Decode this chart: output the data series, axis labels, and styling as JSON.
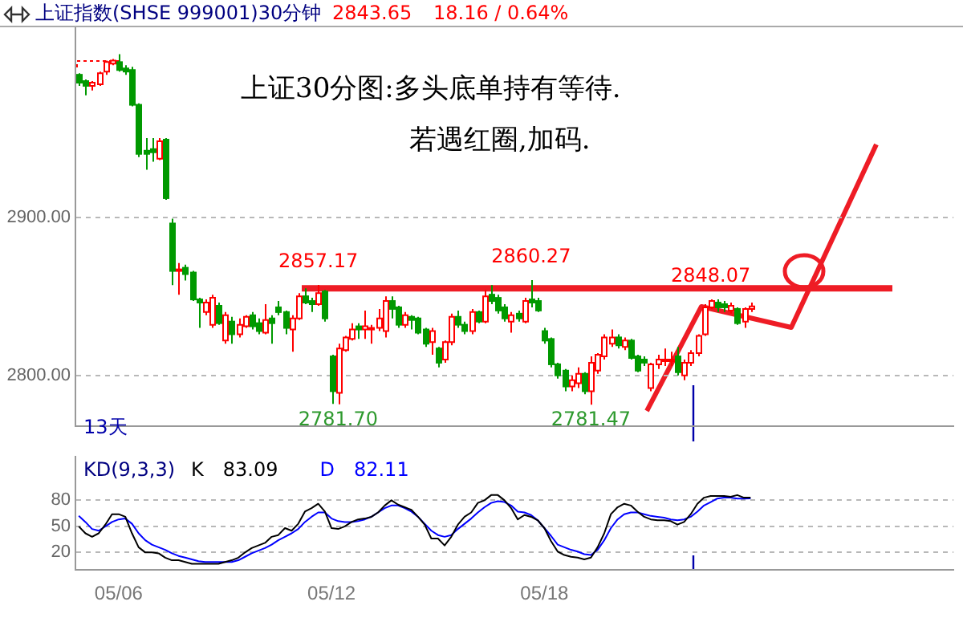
{
  "chart_data": [
    {
      "type": "candlestick",
      "title": "上证指数(SHSE 999001)30分钟",
      "categories": [
        null,
        null,
        null,
        null,
        null,
        null,
        null,
        null,
        null,
        null,
        null,
        null,
        null,
        null,
        null,
        null,
        null,
        null,
        null,
        null,
        null,
        null,
        null,
        null,
        null,
        null,
        null,
        null,
        null,
        null,
        null,
        null,
        null,
        null,
        null,
        null,
        null,
        null,
        null,
        null,
        null,
        null,
        null,
        null,
        null,
        null,
        null,
        null,
        null,
        null,
        null,
        null,
        null,
        null,
        null,
        null,
        null,
        null,
        null,
        null,
        null,
        null,
        null,
        null,
        null,
        null,
        null,
        null,
        null,
        null,
        null,
        null,
        null,
        null,
        null,
        null,
        null,
        null,
        null,
        null,
        null,
        null,
        null,
        null,
        null,
        null,
        null,
        null,
        null,
        null,
        null,
        null,
        null,
        null,
        null,
        null,
        null,
        null,
        null,
        null,
        null,
        null,
        null,
        null,
        null,
        null,
        null,
        null,
        null,
        null,
        null,
        null,
        null,
        null,
        null,
        null,
        null,
        null,
        null,
        null,
        null,
        null,
        null,
        null,
        null,
        null,
        null,
        null,
        null,
        null,
        null,
        null
      ],
      "ohlc": [
        [
          2990,
          2991,
          2983,
          2985
        ],
        [
          2986,
          2987,
          2977,
          2983
        ],
        [
          2983,
          2986,
          2980,
          2985
        ],
        [
          2984,
          2992,
          2983,
          2991
        ],
        [
          2992,
          2999,
          2990,
          2998
        ],
        [
          2997,
          3000,
          2996,
          2999
        ],
        [
          2998,
          3003,
          2992,
          2993
        ],
        [
          2994,
          2996,
          2990,
          2992
        ],
        [
          2993,
          2995,
          2970,
          2971
        ],
        [
          2971,
          2972,
          2938,
          2940
        ],
        [
          2942,
          2950,
          2930,
          2940
        ],
        [
          2943,
          2950,
          2935,
          2941
        ],
        [
          2937,
          2950,
          2936,
          2948
        ],
        [
          2949,
          2950,
          2911,
          2912
        ],
        [
          2896,
          2899,
          2857,
          2866
        ],
        [
          2866,
          2871,
          2851,
          2867
        ],
        [
          2868,
          2870,
          2860,
          2864
        ],
        [
          2865,
          2866,
          2847,
          2848
        ],
        [
          2848,
          2849,
          2830,
          2846
        ],
        [
          2840,
          2848,
          2838,
          2846
        ],
        [
          2832,
          2851,
          2830,
          2849
        ],
        [
          2844,
          2846,
          2832,
          2833
        ],
        [
          2822,
          2840,
          2820,
          2838
        ],
        [
          2834,
          2837,
          2820,
          2826
        ],
        [
          2826,
          2836,
          2824,
          2832
        ],
        [
          2831,
          2838,
          2830,
          2837
        ],
        [
          2838,
          2840,
          2829,
          2831
        ],
        [
          2833,
          2836,
          2826,
          2828
        ],
        [
          2827,
          2845,
          2826,
          2835
        ],
        [
          2836,
          2838,
          2820,
          2833
        ],
        [
          2843,
          2847,
          2838,
          2840
        ],
        [
          2840,
          2841,
          2826,
          2830
        ],
        [
          2829,
          2838,
          2815,
          2836
        ],
        [
          2836,
          2852,
          2835,
          2850
        ],
        [
          2850,
          2855,
          2845,
          2846
        ],
        [
          2847,
          2849,
          2840,
          2845
        ],
        [
          2845,
          2857.17,
          2844,
          2852
        ],
        [
          2853,
          2854,
          2834,
          2836
        ],
        [
          2812,
          2813,
          2782,
          2790
        ],
        [
          2789,
          2820,
          2781.7,
          2817
        ],
        [
          2816,
          2825,
          2815,
          2824
        ],
        [
          2823,
          2833,
          2822,
          2829
        ],
        [
          2831,
          2833,
          2823,
          2829
        ],
        [
          2829,
          2841,
          2823,
          2831
        ],
        [
          2829,
          2832,
          2820,
          2830
        ],
        [
          2830,
          2842,
          2828,
          2836
        ],
        [
          2828,
          2850,
          2824,
          2847
        ],
        [
          2847,
          2850,
          2836,
          2842
        ],
        [
          2843,
          2844,
          2830,
          2832
        ],
        [
          2832,
          2840,
          2830,
          2838
        ],
        [
          2837,
          2838,
          2829,
          2835
        ],
        [
          2836,
          2837,
          2826,
          2827
        ],
        [
          2829,
          2830,
          2818,
          2820
        ],
        [
          2821,
          2830,
          2813,
          2828
        ],
        [
          2817,
          2818,
          2805,
          2808
        ],
        [
          2810,
          2822,
          2808,
          2821
        ],
        [
          2821,
          2839,
          2819,
          2837
        ],
        [
          2837,
          2841,
          2830,
          2832
        ],
        [
          2832,
          2834,
          2826,
          2828
        ],
        [
          2828,
          2842,
          2826,
          2840
        ],
        [
          2840,
          2841,
          2833,
          2834
        ],
        [
          2834,
          2854,
          2833,
          2850
        ],
        [
          2851,
          2857,
          2845,
          2847
        ],
        [
          2849,
          2851,
          2839,
          2841
        ],
        [
          2843,
          2845,
          2834,
          2836
        ],
        [
          2834,
          2840,
          2827,
          2838
        ],
        [
          2839,
          2841,
          2834,
          2836
        ],
        [
          2834,
          2849,
          2833,
          2847
        ],
        [
          2848,
          2860.27,
          2843,
          2846
        ],
        [
          2847,
          2849,
          2840,
          2841
        ],
        [
          2828,
          2830,
          2820,
          2822
        ],
        [
          2823,
          2824,
          2805,
          2807
        ],
        [
          2807,
          2808,
          2798,
          2800
        ],
        [
          2803,
          2804,
          2790,
          2793
        ],
        [
          2793,
          2800,
          2790,
          2797
        ],
        [
          2795,
          2805,
          2792,
          2801
        ],
        [
          2801,
          2802,
          2788,
          2790
        ],
        [
          2790,
          2812,
          2781.47,
          2808
        ],
        [
          2803,
          2814,
          2801,
          2813
        ],
        [
          2812,
          2826,
          2810,
          2824
        ],
        [
          2820,
          2829,
          2818,
          2824
        ],
        [
          2824,
          2826,
          2817,
          2819
        ],
        [
          2818,
          2824,
          2816,
          2822
        ],
        [
          2822,
          2823,
          2810,
          2811
        ],
        [
          2812,
          2813,
          2802,
          2803
        ],
        [
          2810,
          2812,
          2806,
          2808
        ],
        [
          2792,
          2808,
          2790,
          2807
        ],
        [
          2807,
          2813,
          2804,
          2810
        ],
        [
          2809,
          2817,
          2806,
          2810
        ],
        [
          2809,
          2815,
          2806,
          2810
        ],
        [
          2812,
          2818,
          2800,
          2802
        ],
        [
          2800,
          2810,
          2797,
          2808
        ],
        [
          2808,
          2816,
          2806,
          2814
        ],
        [
          2814,
          2826,
          2812,
          2825
        ],
        [
          2826,
          2845,
          2825,
          2843
        ],
        [
          2843,
          2848.07,
          2842,
          2847
        ],
        [
          2846,
          2848,
          2840,
          2843
        ],
        [
          2845,
          2847,
          2840,
          2843
        ],
        [
          2841,
          2846,
          2839,
          2844
        ],
        [
          2842,
          2843,
          2832,
          2833
        ],
        [
          2834,
          2843,
          2830,
          2842
        ],
        [
          2842,
          2846,
          2840,
          2843.65
        ],
        null,
        null,
        null,
        null,
        null,
        null,
        null,
        null,
        null,
        null,
        null,
        null,
        null,
        null,
        null,
        null,
        null,
        null,
        null,
        null,
        null,
        null,
        null,
        null,
        null,
        null,
        null,
        null,
        null,
        null
      ],
      "ylim": [
        2768,
        3020
      ],
      "yticks": [
        {
          "value": 2800,
          "label": "2800.00"
        },
        {
          "value": 2900,
          "label": "2900.00"
        }
      ],
      "grid": "y",
      "ref_lines": [
        {
          "axis": "y",
          "value": 2855,
          "color": "#ee1c25"
        }
      ],
      "annotations": [
        "2843.65",
        "18.16 / 0.64%",
        "上证30分图:多头底单持有等待.",
        "若遇红圈,加码.",
        "13天",
        {
          "text": "2857.17",
          "y": 2857.17
        },
        {
          "text": "2860.27",
          "y": 2860.27
        },
        {
          "text": "2848.07",
          "y": 2848.07
        },
        {
          "text": "2781.70",
          "y": 2781.7
        },
        {
          "text": "2781.47",
          "y": 2781.47
        }
      ]
    },
    {
      "type": "line",
      "title": "KD(9,3,3)",
      "categories": [
        null,
        null,
        null,
        null,
        null,
        null,
        "05/06",
        null,
        null,
        null,
        null,
        null,
        null,
        null,
        null,
        null,
        null,
        null,
        null,
        null,
        null,
        null,
        null,
        null,
        null,
        null,
        null,
        null,
        null,
        null,
        null,
        null,
        null,
        null,
        null,
        null,
        null,
        null,
        "05/12",
        null,
        null,
        null,
        null,
        null,
        null,
        null,
        null,
        null,
        null,
        null,
        null,
        null,
        null,
        null,
        null,
        null,
        null,
        null,
        null,
        null,
        null,
        null,
        null,
        null,
        null,
        null,
        null,
        null,
        null,
        null,
        "05/18",
        null,
        null,
        null,
        null,
        null,
        null,
        null,
        null,
        null,
        null,
        null,
        null,
        null,
        null,
        null,
        null,
        null,
        null,
        null,
        null,
        null,
        null,
        null,
        null,
        null,
        null,
        null,
        null,
        null,
        null,
        null,
        null,
        null,
        null,
        null,
        null,
        null,
        null,
        null,
        null,
        null,
        null,
        null,
        null,
        null,
        null,
        null,
        null,
        null,
        null,
        null,
        null,
        null,
        null,
        null,
        null,
        null,
        null,
        null,
        null,
        null
      ],
      "series": [
        {
          "name": "K",
          "color": "#000000",
          "values": [
            50,
            42,
            38,
            42,
            52,
            64,
            64,
            61,
            42,
            26,
            20,
            20,
            19,
            14,
            11,
            11,
            9,
            7,
            7,
            7,
            7,
            7,
            9,
            11,
            14,
            20,
            25,
            28,
            31,
            38,
            40,
            48,
            45,
            53,
            67,
            71,
            76,
            67,
            48,
            47,
            50,
            55,
            58,
            59,
            61,
            66,
            74,
            80,
            75,
            72,
            69,
            61,
            52,
            36,
            36,
            28,
            38,
            52,
            61,
            66,
            77,
            80,
            86,
            86,
            80,
            71,
            58,
            63,
            61,
            57,
            48,
            33,
            21,
            17,
            15,
            14,
            12,
            14,
            26,
            42,
            64,
            72,
            76,
            74,
            67,
            61,
            58,
            57,
            57,
            56,
            52,
            55,
            64,
            76,
            83,
            85,
            85,
            85,
            84,
            86,
            83,
            83.09,
            null,
            null,
            null,
            null,
            null,
            null,
            null,
            null,
            null,
            null,
            null,
            null,
            null,
            null,
            null,
            null,
            null,
            null,
            null,
            null,
            null,
            null,
            null,
            null,
            null,
            null,
            null,
            null,
            null,
            null
          ]
        },
        {
          "name": "D",
          "color": "#0000ff",
          "values": [
            62,
            55,
            47,
            45,
            50,
            55,
            58,
            59,
            53,
            42,
            34,
            29,
            26,
            23,
            19,
            16,
            14,
            12,
            10,
            9,
            9,
            9,
            9,
            9,
            11,
            15,
            19,
            22,
            25,
            29,
            34,
            38,
            42,
            47,
            55,
            61,
            66,
            66,
            59,
            56,
            55,
            55,
            56,
            58,
            61,
            66,
            71,
            74,
            74,
            71,
            67,
            61,
            53,
            45,
            40,
            38,
            40,
            47,
            53,
            59,
            66,
            72,
            77,
            79,
            78,
            74,
            67,
            66,
            63,
            57,
            48,
            39,
            29,
            26,
            23,
            21,
            18,
            17,
            23,
            34,
            48,
            58,
            64,
            66,
            66,
            64,
            62,
            61,
            60,
            58,
            57,
            58,
            61,
            67,
            74,
            78,
            82,
            83,
            83,
            82,
            82,
            82.11,
            null,
            null,
            null,
            null,
            null,
            null,
            null,
            null,
            null,
            null,
            null,
            null,
            null,
            null,
            null,
            null,
            null,
            null,
            null,
            null,
            null,
            null,
            null,
            null,
            null,
            null,
            null,
            null,
            null,
            null
          ]
        }
      ],
      "ylim": [
        0,
        130
      ],
      "yticks": [
        20,
        50,
        80
      ],
      "grid": "y",
      "legend": "top left",
      "annotations": [
        "83.09",
        "82.11"
      ]
    }
  ]
}
